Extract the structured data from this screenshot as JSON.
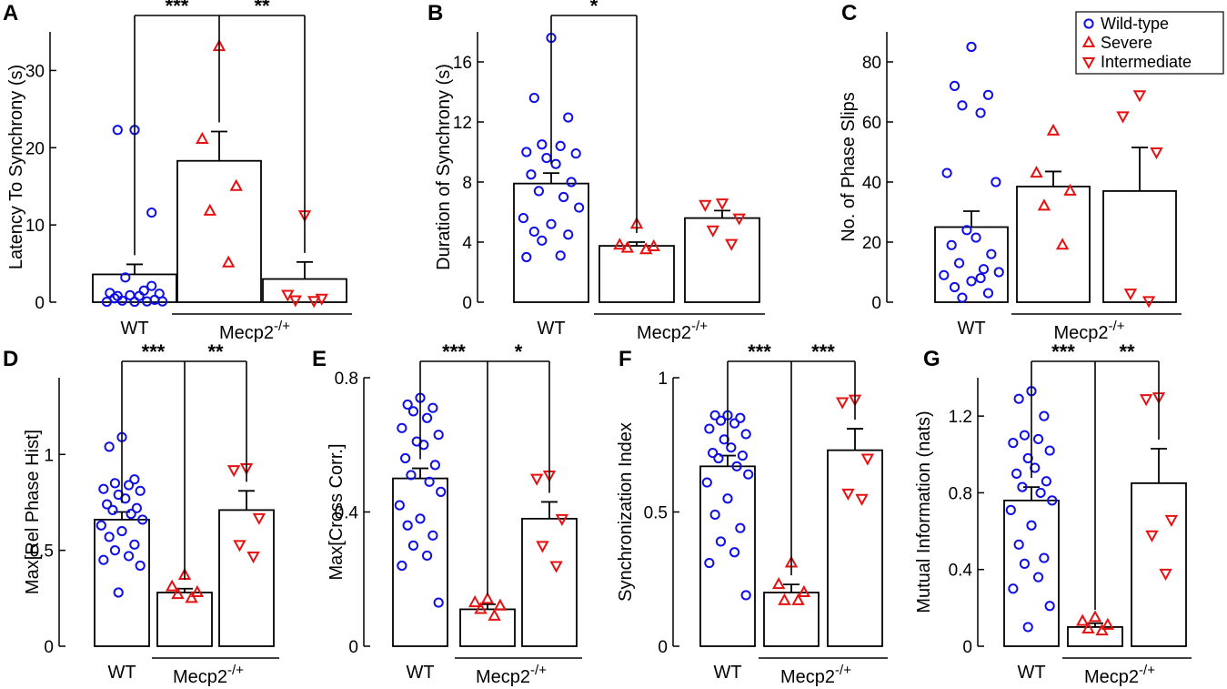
{
  "colors": {
    "wt": "#1010e6",
    "mut": "#e61010"
  },
  "legend": [
    {
      "label": "Wild-type",
      "marker": "circle",
      "color": "#1010e6"
    },
    {
      "label": "Severe",
      "marker": "tri-up",
      "color": "#e61010"
    },
    {
      "label": "Intermediate",
      "marker": "tri-down",
      "color": "#e61010"
    }
  ],
  "chart_data": [
    {
      "panel": "A",
      "type": "bar",
      "ylabel": "Latency To Synchrony (s)",
      "yticks": [
        0,
        10,
        20,
        30
      ],
      "ylim": [
        0,
        35
      ],
      "categories": [
        "WT",
        "Severe",
        "Intermediate"
      ],
      "x_labels": {
        "wt": "WT",
        "group_main": "Mecp2",
        "group_sup": "-/+"
      },
      "bars": [
        3.6,
        18.3,
        3.0
      ],
      "errors": [
        1.3,
        3.8,
        2.2
      ],
      "points": [
        [
          22.3,
          22.3,
          11.6,
          3.2,
          1.5,
          1.2,
          1.1,
          0.9,
          0.8,
          0.5,
          0.3,
          0.2,
          0.1,
          0.1,
          0.05,
          0.05,
          0.8,
          2.1
        ],
        [
          33.1,
          21.1,
          15.0,
          11.8,
          5.1
        ],
        [
          11.3,
          1.0,
          0.5,
          0.3,
          0.2
        ]
      ],
      "markers": [
        "circle",
        "tri-up",
        "tri-down"
      ],
      "brackets": [
        {
          "from": 0,
          "to": 1,
          "label": "***"
        },
        {
          "from": 1,
          "to": 2,
          "label": "**"
        }
      ]
    },
    {
      "panel": "B",
      "type": "bar",
      "ylabel": "Duration of Synchrony (s)",
      "yticks": [
        0,
        4,
        8,
        12,
        16
      ],
      "ylim": [
        0,
        18
      ],
      "categories": [
        "WT",
        "Severe",
        "Intermediate"
      ],
      "x_labels": {
        "wt": "WT",
        "group_main": "Mecp2",
        "group_sup": "-/+"
      },
      "bars": [
        7.9,
        3.75,
        5.6
      ],
      "errors": [
        0.7,
        0.25,
        0.5
      ],
      "points": [
        [
          17.6,
          13.6,
          12.3,
          10.5,
          10.4,
          10.0,
          9.9,
          9.6,
          9.2,
          8.5,
          8.0,
          7.4,
          7.0,
          6.3,
          5.6,
          5.2,
          4.7,
          4.5,
          4.1,
          3.1,
          3.0
        ],
        [
          5.2,
          3.8,
          3.7,
          3.6,
          3.5
        ],
        [
          6.6,
          6.5,
          5.6,
          4.8,
          3.9
        ]
      ],
      "markers": [
        "circle",
        "tri-up",
        "tri-down"
      ],
      "brackets": [
        {
          "from": 0,
          "to": 1,
          "label": "*"
        }
      ]
    },
    {
      "panel": "C",
      "type": "bar",
      "ylabel": "No. of Phase Slips",
      "yticks": [
        0,
        20,
        40,
        60,
        80
      ],
      "ylim": [
        0,
        90
      ],
      "categories": [
        "WT",
        "Severe",
        "Intermediate"
      ],
      "x_labels": {
        "wt": "WT",
        "group_main": "Mecp2",
        "group_sup": "-/+"
      },
      "bars": [
        25.0,
        38.5,
        37.0
      ],
      "errors": [
        5.3,
        5.0,
        14.5
      ],
      "points": [
        [
          85.0,
          72.0,
          69.0,
          65.5,
          63.0,
          43.0,
          40.0,
          24.0,
          21.5,
          19.0,
          16.0,
          13.0,
          11.0,
          10.0,
          9.0,
          7.0,
          5.0,
          3.0,
          1.5,
          8.0
        ],
        [
          57.0,
          43.0,
          37.0,
          32.0,
          19.0
        ],
        [
          69.0,
          62.0,
          50.0,
          3.0,
          0.5
        ]
      ],
      "markers": [
        "circle",
        "tri-up",
        "tri-down"
      ],
      "brackets": []
    },
    {
      "panel": "D",
      "type": "bar",
      "ylabel": "Max[Rel Phase Hist]",
      "yticks": [
        0,
        0.5,
        1
      ],
      "ylim": [
        0,
        1.4
      ],
      "categories": [
        "WT",
        "Severe",
        "Intermediate"
      ],
      "x_labels": {
        "wt": "WT",
        "group_main": "Mecp2",
        "group_sup": "-/+"
      },
      "bars": [
        0.66,
        0.28,
        0.71
      ],
      "errors": [
        0.04,
        0.02,
        0.1
      ],
      "points": [
        [
          1.09,
          1.04,
          0.87,
          0.85,
          0.84,
          0.82,
          0.81,
          0.79,
          0.77,
          0.74,
          0.72,
          0.71,
          0.69,
          0.66,
          0.63,
          0.6,
          0.57,
          0.53,
          0.5,
          0.47,
          0.45,
          0.42,
          0.28
        ],
        [
          0.37,
          0.31,
          0.28,
          0.27,
          0.25
        ],
        [
          0.93,
          0.92,
          0.67,
          0.53,
          0.47
        ]
      ],
      "markers": [
        "circle",
        "tri-up",
        "tri-down"
      ],
      "brackets": [
        {
          "from": 0,
          "to": 1,
          "label": "***"
        },
        {
          "from": 1,
          "to": 2,
          "label": "**"
        }
      ]
    },
    {
      "panel": "E",
      "type": "bar",
      "ylabel": "Max[Cross Corr.]",
      "yticks": [
        0,
        0.4,
        0.8
      ],
      "ylim": [
        0,
        0.8
      ],
      "categories": [
        "WT",
        "Severe",
        "Intermediate"
      ],
      "x_labels": {
        "wt": "WT",
        "group_main": "Mecp2",
        "group_sup": "-/+"
      },
      "bars": [
        0.5,
        0.11,
        0.38
      ],
      "errors": [
        0.03,
        0.015,
        0.05
      ],
      "points": [
        [
          0.74,
          0.72,
          0.71,
          0.7,
          0.68,
          0.65,
          0.63,
          0.61,
          0.6,
          0.56,
          0.54,
          0.51,
          0.49,
          0.46,
          0.42,
          0.38,
          0.36,
          0.33,
          0.3,
          0.27,
          0.24,
          0.13
        ],
        [
          0.14,
          0.13,
          0.12,
          0.11,
          0.09
        ],
        [
          0.51,
          0.5,
          0.38,
          0.3,
          0.24
        ]
      ],
      "markers": [
        "circle",
        "tri-up",
        "tri-down"
      ],
      "brackets": [
        {
          "from": 0,
          "to": 1,
          "label": "***"
        },
        {
          "from": 1,
          "to": 2,
          "label": "*"
        }
      ]
    },
    {
      "panel": "F",
      "type": "bar",
      "ylabel": "Synchronization Index",
      "yticks": [
        0,
        0.5,
        1
      ],
      "ylim": [
        0,
        1.0
      ],
      "categories": [
        "WT",
        "Severe",
        "Intermediate"
      ],
      "x_labels": {
        "wt": "WT",
        "group_main": "Mecp2",
        "group_sup": "-/+"
      },
      "bars": [
        0.67,
        0.2,
        0.73
      ],
      "errors": [
        0.04,
        0.03,
        0.08
      ],
      "points": [
        [
          0.86,
          0.86,
          0.85,
          0.84,
          0.83,
          0.81,
          0.79,
          0.77,
          0.74,
          0.72,
          0.71,
          0.7,
          0.67,
          0.64,
          0.61,
          0.55,
          0.49,
          0.44,
          0.39,
          0.35,
          0.31,
          0.19
        ],
        [
          0.31,
          0.23,
          0.2,
          0.17,
          0.17
        ],
        [
          0.92,
          0.91,
          0.7,
          0.57,
          0.55
        ]
      ],
      "markers": [
        "circle",
        "tri-up",
        "tri-down"
      ],
      "brackets": [
        {
          "from": 0,
          "to": 1,
          "label": "***"
        },
        {
          "from": 1,
          "to": 2,
          "label": "***"
        }
      ]
    },
    {
      "panel": "G",
      "type": "bar",
      "ylabel": "Mutual Information (nats)",
      "yticks": [
        0,
        0.4,
        0.8,
        1.2
      ],
      "ylim": [
        0,
        1.4
      ],
      "categories": [
        "WT",
        "Severe",
        "Intermediate"
      ],
      "x_labels": {
        "wt": "WT",
        "group_main": "Mecp2",
        "group_sup": "-/+"
      },
      "bars": [
        0.76,
        0.1,
        0.85
      ],
      "errors": [
        0.07,
        0.02,
        0.18
      ],
      "points": [
        [
          1.33,
          1.29,
          1.2,
          1.1,
          1.08,
          1.06,
          1.02,
          0.98,
          0.93,
          0.9,
          0.86,
          0.83,
          0.8,
          0.76,
          0.71,
          0.63,
          0.53,
          0.46,
          0.43,
          0.36,
          0.3,
          0.21,
          0.1
        ],
        [
          0.15,
          0.13,
          0.11,
          0.09,
          0.08
        ],
        [
          1.3,
          1.29,
          0.66,
          0.58,
          0.38
        ]
      ],
      "markers": [
        "circle",
        "tri-up",
        "tri-down"
      ],
      "brackets": [
        {
          "from": 0,
          "to": 1,
          "label": "***"
        },
        {
          "from": 1,
          "to": 2,
          "label": "**"
        }
      ]
    }
  ]
}
